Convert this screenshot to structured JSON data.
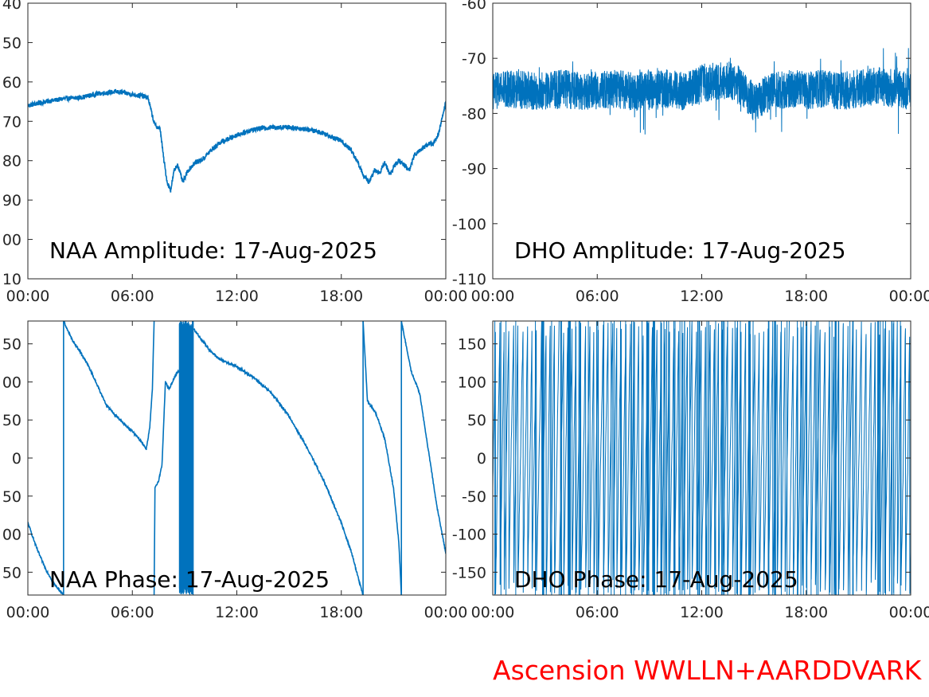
{
  "footer": {
    "text": "Ascension WWLLN+AARDDVARK",
    "color": "#ff0000"
  },
  "colors": {
    "series": "#0072bd",
    "axis": "#262626"
  },
  "chart_data": [
    {
      "id": "naa-amplitude",
      "type": "line",
      "title": "NAA Amplitude: 17-Aug-2025",
      "xlabel": "",
      "ylabel": "",
      "x_ticks": [
        "00:00",
        "06:00",
        "12:00",
        "18:00",
        "00:00"
      ],
      "y_tick_labels": [
        "40",
        "50",
        "60",
        "70",
        "80",
        "90",
        "00",
        "10"
      ],
      "xlim": [
        0,
        24
      ],
      "ylim": [
        -110,
        -40
      ],
      "grid": false,
      "series": [
        {
          "x": [
            0,
            0.5,
            1,
            1.5,
            2,
            3,
            4,
            5,
            5.5,
            6,
            6.5,
            6.9,
            7.2,
            7.3,
            7.6,
            7.8,
            8.0,
            8.2,
            8.4,
            8.6,
            8.9,
            9.2,
            9.6,
            10,
            10.5,
            11,
            12,
            13,
            14,
            15,
            16,
            17,
            18,
            18.6,
            19,
            19.3,
            19.6,
            19.9,
            20.2,
            20.5,
            20.8,
            21.1,
            21.3,
            21.6,
            21.9,
            22.2,
            22.6,
            23,
            23.3,
            23.6,
            24
          ],
          "y": [
            -66,
            -65.5,
            -65,
            -64.7,
            -64.3,
            -64,
            -63,
            -62.5,
            -62.7,
            -63.2,
            -63.5,
            -64,
            -69.5,
            -71,
            -72,
            -79.5,
            -85.5,
            -87.5,
            -82.5,
            -81,
            -85.5,
            -82.5,
            -80.5,
            -79.8,
            -77.5,
            -75.5,
            -73.5,
            -72,
            -71.5,
            -71.5,
            -72,
            -73,
            -75,
            -77.5,
            -81,
            -84,
            -85.5,
            -82.5,
            -83,
            -80.5,
            -83.5,
            -81,
            -80,
            -81,
            -82.5,
            -78.5,
            -77,
            -75.8,
            -75.5,
            -73,
            -65
          ]
        }
      ]
    },
    {
      "id": "dho-amplitude",
      "type": "line",
      "title": "DHO Amplitude: 17-Aug-2025",
      "xlabel": "",
      "ylabel": "",
      "x_ticks": [
        "00:00",
        "06:00",
        "12:00",
        "18:00",
        "00:00"
      ],
      "y_ticks": [
        -60,
        -70,
        -80,
        -90,
        -100,
        -110
      ],
      "xlim": [
        0,
        24
      ],
      "ylim": [
        -110,
        -60
      ],
      "grid": false,
      "series": [
        {
          "x": [
            0,
            1,
            2,
            3,
            4,
            5,
            6,
            7,
            8,
            9,
            10,
            11,
            12,
            13,
            13.5,
            14,
            14.5,
            15,
            16,
            17,
            18,
            19,
            20,
            21,
            22,
            23,
            24
          ],
          "y": [
            -76,
            -75.5,
            -75.8,
            -76,
            -75.5,
            -76,
            -75.8,
            -75.5,
            -76,
            -75.8,
            -75.5,
            -76,
            -74.5,
            -74,
            -74,
            -74.5,
            -76,
            -78,
            -76,
            -75.5,
            -75.8,
            -75.5,
            -76,
            -75.5,
            -75,
            -75.5,
            -76
          ],
          "band_halfwidth": 3.5
        }
      ]
    },
    {
      "id": "naa-phase",
      "type": "line",
      "title": "NAA Phase: 17-Aug-2025",
      "xlabel": "",
      "ylabel": "",
      "x_ticks": [
        "00:00",
        "06:00",
        "12:00",
        "18:00",
        "00:00"
      ],
      "y_tick_labels": [
        "50",
        "00",
        "50",
        "0",
        "50",
        "00",
        "50"
      ],
      "xlim": [
        0,
        24
      ],
      "ylim": [
        -180,
        180
      ],
      "grid": false,
      "segments": [
        {
          "x": [
            0,
            0.5,
            1,
            1.5,
            2.05
          ],
          "y": [
            -85,
            -118,
            -145,
            -165,
            -180
          ]
        },
        {
          "x": [
            2.05,
            2.05
          ],
          "y": [
            -180,
            180
          ]
        },
        {
          "x": [
            2.05,
            2.5,
            3,
            3.5,
            4,
            4.5,
            5,
            5.5,
            6,
            6.5,
            6.8,
            7.0,
            7.15,
            7.25
          ],
          "y": [
            180,
            157,
            140,
            120,
            95,
            70,
            57,
            45,
            35,
            22,
            12,
            40,
            90,
            180
          ]
        },
        {
          "x": [
            7.25,
            7.3,
            7.5,
            7.7,
            7.9,
            8.1,
            8.3,
            8.5,
            8.7
          ],
          "y": [
            -180,
            -40,
            -30,
            -10,
            100,
            90,
            100,
            110,
            115
          ]
        },
        {
          "x": [
            9.5,
            10,
            10.5,
            11,
            12,
            13,
            14,
            15,
            16,
            17,
            18,
            18.6,
            19,
            19.25
          ],
          "y": [
            170,
            155,
            140,
            130,
            120,
            105,
            85,
            55,
            15,
            -30,
            -85,
            -125,
            -160,
            -180
          ]
        },
        {
          "x": [
            19.25,
            19.25
          ],
          "y": [
            -180,
            180
          ]
        },
        {
          "x": [
            19.25,
            19.5,
            20,
            20.5,
            21,
            21.3,
            21.45
          ],
          "y": [
            180,
            75,
            58,
            25,
            -40,
            -110,
            -180
          ]
        },
        {
          "x": [
            21.45,
            21.45
          ],
          "y": [
            -180,
            180
          ]
        },
        {
          "x": [
            21.45,
            22,
            22.5,
            23,
            23.5,
            24
          ],
          "y": [
            180,
            115,
            85,
            10,
            -65,
            -125
          ]
        }
      ],
      "dense_band": {
        "x": [
          8.7,
          9.5
        ],
        "ylim": [
          -180,
          180
        ]
      }
    },
    {
      "id": "dho-phase",
      "type": "line",
      "title": "DHO Phase: 17-Aug-2025",
      "xlabel": "",
      "ylabel": "",
      "x_ticks": [
        "00:00",
        "06:00",
        "12:00",
        "18:00",
        "00:00"
      ],
      "y_ticks": [
        150,
        100,
        50,
        0,
        -50,
        -100,
        -150
      ],
      "xlim": [
        0,
        24
      ],
      "ylim": [
        -180,
        180
      ],
      "grid": false,
      "series": [
        {
          "wrapped": true,
          "range": [
            -180,
            180
          ]
        }
      ]
    }
  ]
}
